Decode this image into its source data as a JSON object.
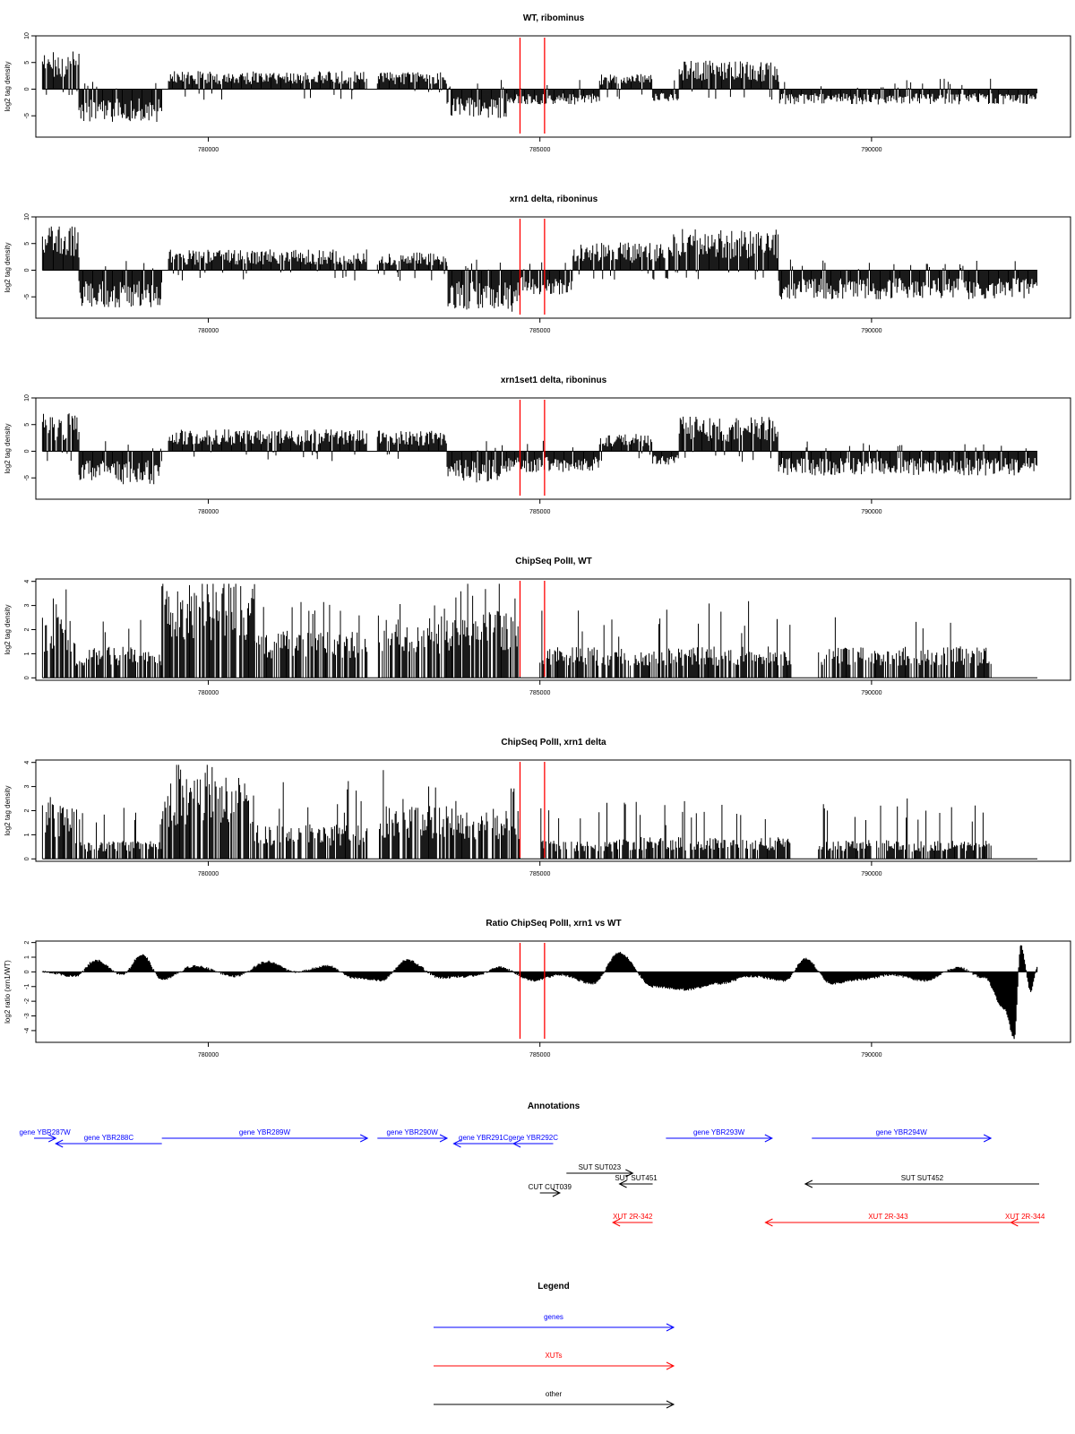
{
  "chart_data": [
    {
      "type": "bar",
      "title": "WT, ribominus",
      "xlabel": "",
      "ylabel": "log2 tag density",
      "xlim": [
        777400,
        793000
      ],
      "ylim": [
        -9,
        10
      ],
      "yticks": [
        "-5",
        "0",
        "5",
        "10"
      ],
      "yticks_values": [
        -5,
        0,
        5,
        10
      ],
      "xticks": [
        "780000",
        "785000",
        "790000"
      ],
      "xticks_values": [
        780000,
        785000,
        790000
      ],
      "markers": [
        784700,
        785070
      ],
      "profile": [
        {
          "from": 777500,
          "to": 778050,
          "level": 5.5
        },
        {
          "from": 778050,
          "to": 779300,
          "level": -4.8
        },
        {
          "from": 779400,
          "to": 782400,
          "level": 2.6
        },
        {
          "from": 782550,
          "to": 783600,
          "level": 2.5
        },
        {
          "from": 783600,
          "to": 784500,
          "level": -4.2
        },
        {
          "from": 784500,
          "to": 785900,
          "level": -2.2
        },
        {
          "from": 785900,
          "to": 786700,
          "level": 2.2
        },
        {
          "from": 786700,
          "to": 787100,
          "level": -1.8
        },
        {
          "from": 787100,
          "to": 788600,
          "level": 4.2
        },
        {
          "from": 788600,
          "to": 792500,
          "level": -2.2
        }
      ]
    },
    {
      "type": "bar",
      "title": "xrn1 delta, riboninus",
      "xlabel": "",
      "ylabel": "log2 tag density",
      "xlim": [
        777400,
        793000
      ],
      "ylim": [
        -9,
        10
      ],
      "yticks": [
        "-5",
        "0",
        "5",
        "10"
      ],
      "yticks_values": [
        -5,
        0,
        5,
        10
      ],
      "xticks": [
        "780000",
        "785000",
        "790000"
      ],
      "xticks_values": [
        780000,
        785000,
        790000
      ],
      "markers": [
        784700,
        785070
      ],
      "profile": [
        {
          "from": 777500,
          "to": 778050,
          "level": 6.5
        },
        {
          "from": 778050,
          "to": 779300,
          "level": -5.5
        },
        {
          "from": 779400,
          "to": 782400,
          "level": 3.0
        },
        {
          "from": 782550,
          "to": 783600,
          "level": 2.6
        },
        {
          "from": 783600,
          "to": 784700,
          "level": -6.0
        },
        {
          "from": 784700,
          "to": 785500,
          "level": -3.5
        },
        {
          "from": 785500,
          "to": 787000,
          "level": 4.0
        },
        {
          "from": 787000,
          "to": 788600,
          "level": 6.0
        },
        {
          "from": 788600,
          "to": 792500,
          "level": -4.2
        }
      ]
    },
    {
      "type": "bar",
      "title": "xrn1set1 delta, riboninus",
      "xlabel": "",
      "ylabel": "log2 tag density",
      "xlim": [
        777400,
        793000
      ],
      "ylim": [
        -9,
        10
      ],
      "yticks": [
        "-5",
        "0",
        "5",
        "10"
      ],
      "yticks_values": [
        -5,
        0,
        5,
        10
      ],
      "xticks": [
        "780000",
        "785000",
        "790000"
      ],
      "xticks_values": [
        780000,
        785000,
        790000
      ],
      "markers": [
        784700,
        785070
      ],
      "profile": [
        {
          "from": 777500,
          "to": 778050,
          "level": 5.5
        },
        {
          "from": 778050,
          "to": 779300,
          "level": -4.8
        },
        {
          "from": 779400,
          "to": 782400,
          "level": 3.2
        },
        {
          "from": 782550,
          "to": 783600,
          "level": 3.0
        },
        {
          "from": 783600,
          "to": 784500,
          "level": -4.5
        },
        {
          "from": 784500,
          "to": 785900,
          "level": -3.0
        },
        {
          "from": 785900,
          "to": 786700,
          "level": 2.5
        },
        {
          "from": 786700,
          "to": 787100,
          "level": -2.0
        },
        {
          "from": 787100,
          "to": 788600,
          "level": 5.0
        },
        {
          "from": 788600,
          "to": 792500,
          "level": -3.5
        }
      ]
    },
    {
      "type": "bar",
      "title": "ChipSeq PolII, WT",
      "xlabel": "",
      "ylabel": "log2 tag density",
      "xlim": [
        777400,
        793000
      ],
      "ylim": [
        -0.1,
        4.1
      ],
      "yticks": [
        "0",
        "1",
        "2",
        "3",
        "4"
      ],
      "yticks_values": [
        0,
        1,
        2,
        3,
        4
      ],
      "xticks": [
        "780000",
        "785000",
        "790000"
      ],
      "xticks_values": [
        780000,
        785000,
        790000
      ],
      "markers": [
        784700,
        785070
      ],
      "profile": [
        {
          "from": 777500,
          "to": 778000,
          "level": 2.0
        },
        {
          "from": 778000,
          "to": 779300,
          "level": 1.0
        },
        {
          "from": 779300,
          "to": 780700,
          "level": 3.0
        },
        {
          "from": 780700,
          "to": 782400,
          "level": 1.5
        },
        {
          "from": 782550,
          "to": 783600,
          "level": 2.0
        },
        {
          "from": 783600,
          "to": 784700,
          "level": 2.2
        },
        {
          "from": 785000,
          "to": 786200,
          "level": 1.0
        },
        {
          "from": 786200,
          "to": 788800,
          "level": 1.0
        },
        {
          "from": 789200,
          "to": 791800,
          "level": 1.0
        }
      ]
    },
    {
      "type": "bar",
      "title": "ChipSeq PolII, xrn1 delta",
      "xlabel": "",
      "ylabel": "log2 tag density",
      "xlim": [
        777400,
        793000
      ],
      "ylim": [
        -0.1,
        4.1
      ],
      "yticks": [
        "0",
        "1",
        "2",
        "3",
        "4"
      ],
      "yticks_values": [
        0,
        1,
        2,
        3,
        4
      ],
      "xticks": [
        "780000",
        "785000",
        "790000"
      ],
      "xticks_values": [
        780000,
        785000,
        790000
      ],
      "markers": [
        784700,
        785070
      ],
      "profile": [
        {
          "from": 777500,
          "to": 778000,
          "level": 1.8
        },
        {
          "from": 778000,
          "to": 779300,
          "level": 0.6
        },
        {
          "from": 779300,
          "to": 780700,
          "level": 2.6
        },
        {
          "from": 780700,
          "to": 782400,
          "level": 1.1
        },
        {
          "from": 782550,
          "to": 783600,
          "level": 1.7
        },
        {
          "from": 783600,
          "to": 784700,
          "level": 1.6
        },
        {
          "from": 785000,
          "to": 786200,
          "level": 0.6
        },
        {
          "from": 786200,
          "to": 788800,
          "level": 0.7
        },
        {
          "from": 789200,
          "to": 791800,
          "level": 0.6
        }
      ]
    },
    {
      "type": "area",
      "title": "Ratio ChipSeq PolII, xrn1 vs WT",
      "xlabel": "",
      "ylabel": "log2 ratio (xrn1/WT)",
      "xlim": [
        777400,
        793000
      ],
      "ylim": [
        -4.8,
        2.1
      ],
      "yticks": [
        "-4",
        "-3",
        "-2",
        "-1",
        "0",
        "1",
        "2"
      ],
      "yticks_values": [
        -4,
        -3,
        -2,
        -1,
        0,
        1,
        2
      ],
      "xticks": [
        "780000",
        "785000",
        "790000"
      ],
      "xticks_values": [
        780000,
        785000,
        790000
      ],
      "markers": [
        784700,
        785070
      ],
      "points": [
        {
          "x": 777500,
          "y": 0.0
        },
        {
          "x": 778000,
          "y": -0.3
        },
        {
          "x": 778300,
          "y": 0.8
        },
        {
          "x": 778700,
          "y": -0.2
        },
        {
          "x": 779000,
          "y": 1.2
        },
        {
          "x": 779300,
          "y": -0.5
        },
        {
          "x": 779800,
          "y": 0.4
        },
        {
          "x": 780400,
          "y": -0.3
        },
        {
          "x": 780900,
          "y": 0.7
        },
        {
          "x": 781300,
          "y": 0.0
        },
        {
          "x": 781800,
          "y": 0.4
        },
        {
          "x": 782200,
          "y": -0.4
        },
        {
          "x": 782600,
          "y": -0.6
        },
        {
          "x": 783000,
          "y": 0.8
        },
        {
          "x": 783500,
          "y": -0.4
        },
        {
          "x": 784000,
          "y": -0.3
        },
        {
          "x": 784400,
          "y": 0.3
        },
        {
          "x": 784900,
          "y": -0.6
        },
        {
          "x": 785300,
          "y": -0.2
        },
        {
          "x": 785800,
          "y": -0.8
        },
        {
          "x": 786200,
          "y": 1.3
        },
        {
          "x": 786700,
          "y": -1.0
        },
        {
          "x": 787200,
          "y": -1.2
        },
        {
          "x": 787700,
          "y": -0.8
        },
        {
          "x": 788200,
          "y": -0.3
        },
        {
          "x": 788700,
          "y": -0.6
        },
        {
          "x": 789000,
          "y": 0.9
        },
        {
          "x": 789400,
          "y": -0.8
        },
        {
          "x": 789900,
          "y": -0.5
        },
        {
          "x": 790300,
          "y": -0.2
        },
        {
          "x": 790800,
          "y": -0.6
        },
        {
          "x": 791300,
          "y": 0.3
        },
        {
          "x": 791700,
          "y": -0.4
        },
        {
          "x": 792000,
          "y": -2.5
        },
        {
          "x": 792150,
          "y": -4.5
        },
        {
          "x": 792250,
          "y": 1.8
        },
        {
          "x": 792400,
          "y": -1.3
        },
        {
          "x": 792500,
          "y": 0.3
        }
      ]
    }
  ],
  "annotations": {
    "title": "Annotations",
    "features": [
      {
        "label": "gene YBR287W",
        "from": 776200,
        "to": 777700,
        "dir": "right",
        "row": 0,
        "color": "#0000ff"
      },
      {
        "label": "gene YBR288C",
        "from": 777700,
        "to": 779300,
        "dir": "left",
        "row": 1,
        "color": "#0000ff"
      },
      {
        "label": "gene YBR289W",
        "from": 779300,
        "to": 782400,
        "dir": "right",
        "row": 0,
        "color": "#0000ff"
      },
      {
        "label": "gene YBR290W",
        "from": 782550,
        "to": 783600,
        "dir": "right",
        "row": 0,
        "color": "#0000ff"
      },
      {
        "label": "gene YBR291C",
        "from": 783700,
        "to": 784600,
        "dir": "left",
        "row": 1,
        "color": "#0000ff"
      },
      {
        "label": "gene YBR292C",
        "from": 784600,
        "to": 785200,
        "dir": "left",
        "row": 1,
        "color": "#0000ff"
      },
      {
        "label": "gene YBR293W",
        "from": 786900,
        "to": 788500,
        "dir": "right",
        "row": 0,
        "color": "#0000ff"
      },
      {
        "label": "gene YBR294W",
        "from": 789100,
        "to": 791800,
        "dir": "right",
        "row": 0,
        "color": "#0000ff"
      },
      {
        "label": "SUT SUT023",
        "from": 785400,
        "to": 786400,
        "dir": "right",
        "row": 2,
        "color": "#000000"
      },
      {
        "label": "SUT SUT451",
        "from": 786200,
        "to": 786700,
        "dir": "left",
        "row": 3,
        "color": "#000000"
      },
      {
        "label": "SUT SUT452",
        "from": 789000,
        "to": 792700,
        "dir": "left",
        "row": 3,
        "color": "#000000"
      },
      {
        "label": "CUT CUT039",
        "from": 785000,
        "to": 785300,
        "dir": "right",
        "row": 4,
        "color": "#000000"
      },
      {
        "label": "XUT 2R-342",
        "from": 786100,
        "to": 786700,
        "dir": "left",
        "row": 5,
        "color": "#ff0000"
      },
      {
        "label": "XUT 2R-343",
        "from": 788400,
        "to": 792100,
        "dir": "left",
        "row": 5,
        "color": "#ff0000"
      },
      {
        "label": "XUT 2R-344",
        "from": 792100,
        "to": 792700,
        "dir": "left",
        "row": 5,
        "color": "#ff0000"
      }
    ]
  },
  "legend": {
    "title": "Legend",
    "items": [
      {
        "label": "genes",
        "color": "#0000ff"
      },
      {
        "label": "XUTs",
        "color": "#ff0000"
      },
      {
        "label": "other",
        "color": "#000000"
      }
    ]
  },
  "colors": {
    "signal": "#000000",
    "marker": "#ff0000",
    "gene": "#0000ff",
    "xut": "#ff0000",
    "other": "#000000",
    "axis": "#000000"
  }
}
